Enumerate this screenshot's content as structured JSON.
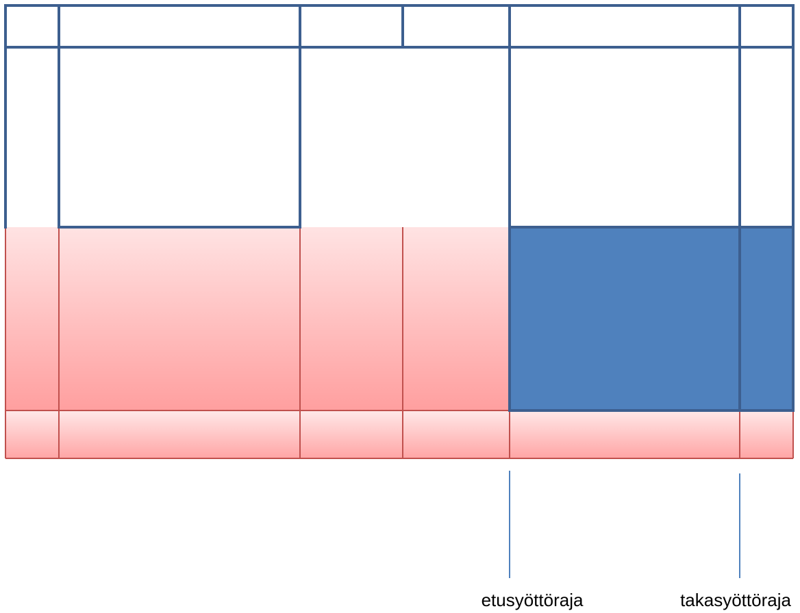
{
  "colors": {
    "outline": "#3d5f8f",
    "fill_blue": "#4f81bd",
    "pink_light": "#ffe3e3",
    "pink_dark": "#ff9f9f",
    "pink_border": "#c0504d",
    "marker_line": "#4f81bd",
    "text": "#000000"
  },
  "labels": {
    "front_boundary": "etusyöttöraja",
    "back_boundary": "takasyöttöraja"
  }
}
